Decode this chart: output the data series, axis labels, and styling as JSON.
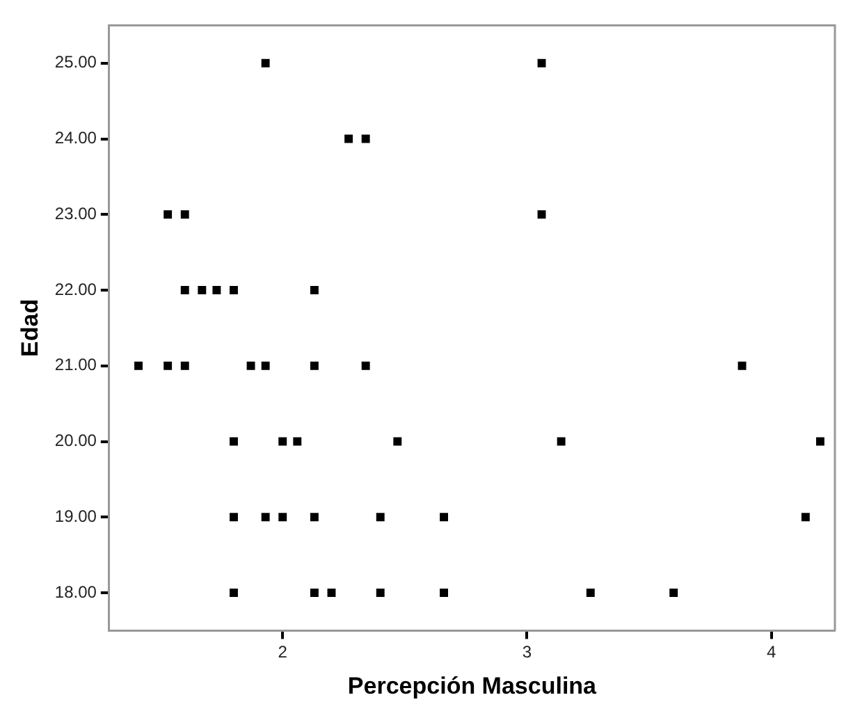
{
  "chart_data": {
    "type": "scatter",
    "xlabel": "Percepción Masculina",
    "ylabel": "Edad",
    "x": [
      1.93,
      3.06,
      2.27,
      2.34,
      1.53,
      1.6,
      3.06,
      1.6,
      1.67,
      1.73,
      1.8,
      2.13,
      1.41,
      1.53,
      1.6,
      1.87,
      1.93,
      2.13,
      2.34,
      3.88,
      1.8,
      2.0,
      2.06,
      2.47,
      3.14,
      4.2,
      1.8,
      1.93,
      2.0,
      2.13,
      2.4,
      2.66,
      4.14,
      1.8,
      2.13,
      2.2,
      2.4,
      2.66,
      3.26,
      3.6
    ],
    "values": [
      25,
      25,
      24,
      24,
      23,
      23,
      23,
      22,
      22,
      22,
      22,
      22,
      21,
      21,
      21,
      21,
      21,
      21,
      21,
      21,
      20,
      20,
      20,
      20,
      20,
      20,
      19,
      19,
      19,
      19,
      19,
      19,
      19,
      18,
      18,
      18,
      18,
      18,
      18,
      18
    ],
    "color": "#000000",
    "marker": "square",
    "xlim": [
      1.29,
      4.26
    ],
    "xticks": [
      2,
      3,
      4
    ],
    "ylim": [
      17.5,
      25.5
    ],
    "yticks": [
      {
        "value": 18,
        "label": "18.00"
      },
      {
        "value": 19,
        "label": "19.00"
      },
      {
        "value": 20,
        "label": "20.00"
      },
      {
        "value": 21,
        "label": "21.00"
      },
      {
        "value": 22,
        "label": "22.00"
      },
      {
        "value": 23,
        "label": "23.00"
      },
      {
        "value": 24,
        "label": "24.00"
      },
      {
        "value": 25,
        "label": "25.00"
      }
    ],
    "grid": false,
    "legend": false
  }
}
